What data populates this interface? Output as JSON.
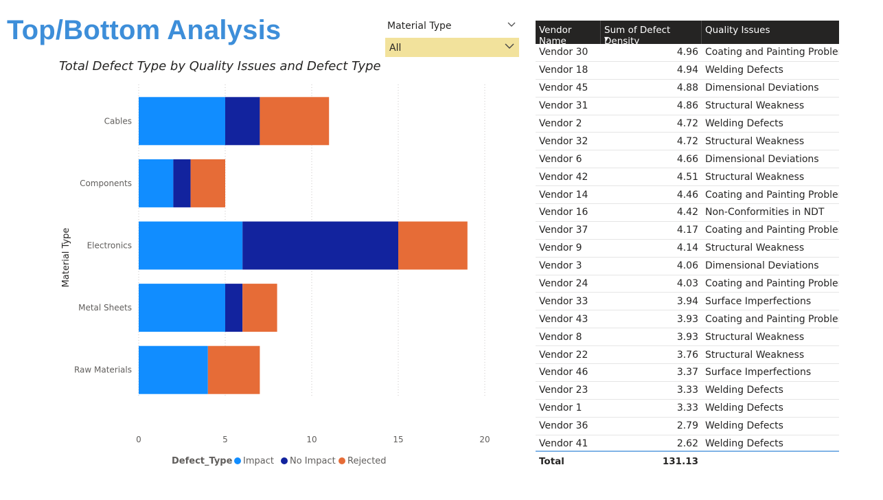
{
  "header": {
    "title": "Top/Bottom Analysis"
  },
  "slicer": {
    "label": "Material Type",
    "value": "All"
  },
  "chart_data": {
    "type": "bar",
    "orientation": "horizontal",
    "stacked": true,
    "title": "Total Defect Type by Quality Issues and Defect Type",
    "xlabel": "",
    "ylabel": "Material Type",
    "categories": [
      "Cables",
      "Components",
      "Electronics",
      "Metal Sheets",
      "Raw Materials"
    ],
    "series": [
      {
        "name": "Impact",
        "color": "#118dff",
        "values": [
          5,
          2,
          6,
          5,
          4
        ]
      },
      {
        "name": "No Impact",
        "color": "#12239e",
        "values": [
          2,
          1,
          9,
          1,
          0
        ]
      },
      {
        "name": "Rejected",
        "color": "#e66c37",
        "values": [
          4,
          2,
          4,
          2,
          3
        ]
      }
    ],
    "xlim": [
      0,
      20
    ],
    "xticks": [
      0,
      5,
      10,
      15,
      20
    ],
    "grid": true,
    "legend": {
      "title": "Defect_Type",
      "position": "bottom"
    }
  },
  "table": {
    "columns": [
      "Vendor Name",
      "Sum of Defect Density",
      "Quality Issues"
    ],
    "sort_indicator": "▼",
    "rows": [
      [
        "Vendor 30",
        "4.96",
        "Coating and Painting Problems"
      ],
      [
        "Vendor 18",
        "4.94",
        "Welding Defects"
      ],
      [
        "Vendor 45",
        "4.88",
        "Dimensional Deviations"
      ],
      [
        "Vendor 31",
        "4.86",
        "Structural Weakness"
      ],
      [
        "Vendor 2",
        "4.72",
        "Welding Defects"
      ],
      [
        "Vendor 32",
        "4.72",
        "Structural Weakness"
      ],
      [
        "Vendor 6",
        "4.66",
        "Dimensional Deviations"
      ],
      [
        "Vendor 42",
        "4.51",
        "Structural Weakness"
      ],
      [
        "Vendor 14",
        "4.46",
        "Coating and Painting Problems"
      ],
      [
        "Vendor 16",
        "4.42",
        "Non-Conformities in NDT"
      ],
      [
        "Vendor 37",
        "4.17",
        "Coating and Painting Problems"
      ],
      [
        "Vendor 9",
        "4.14",
        "Structural Weakness"
      ],
      [
        "Vendor 3",
        "4.06",
        "Dimensional Deviations"
      ],
      [
        "Vendor 24",
        "4.03",
        "Coating and Painting Problems"
      ],
      [
        "Vendor 33",
        "3.94",
        "Surface Imperfections"
      ],
      [
        "Vendor 43",
        "3.93",
        "Coating and Painting Problems"
      ],
      [
        "Vendor 8",
        "3.93",
        "Structural Weakness"
      ],
      [
        "Vendor 22",
        "3.76",
        "Structural Weakness"
      ],
      [
        "Vendor 46",
        "3.37",
        "Surface Imperfections"
      ],
      [
        "Vendor 23",
        "3.33",
        "Welding Defects"
      ],
      [
        "Vendor 1",
        "3.33",
        "Welding Defects"
      ],
      [
        "Vendor 36",
        "2.79",
        "Welding Defects"
      ],
      [
        "Vendor 41",
        "2.62",
        "Welding Defects"
      ]
    ],
    "total": {
      "label": "Total",
      "value": "131.13"
    }
  }
}
